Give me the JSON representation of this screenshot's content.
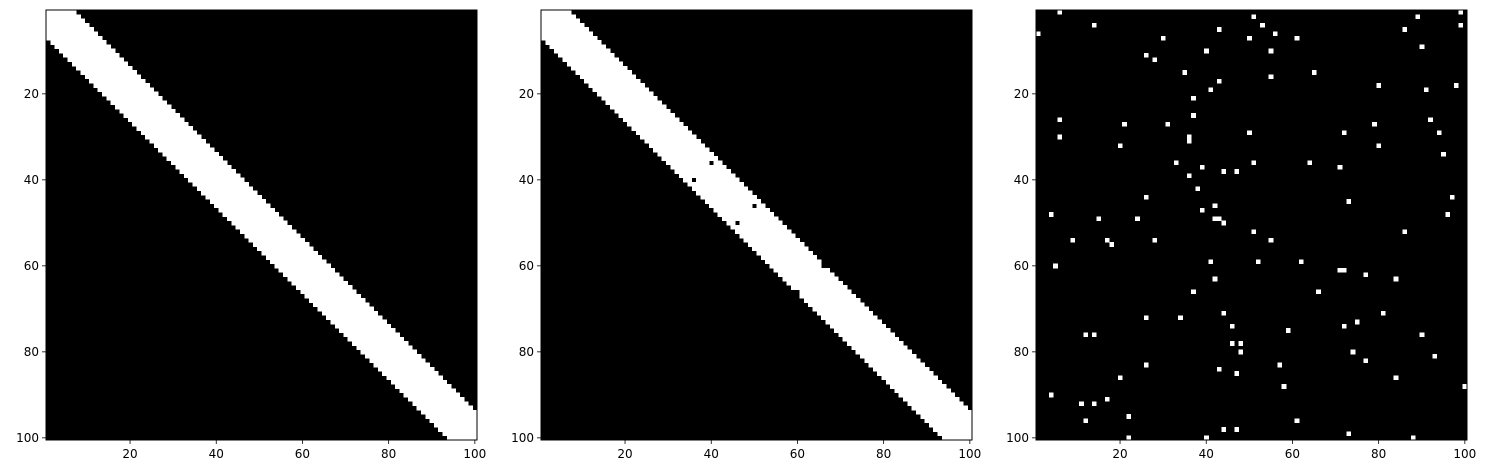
{
  "figure": {
    "background": "#ffffff"
  },
  "chart_data": [
    {
      "type": "heatmap",
      "title": "",
      "xlabel": "",
      "ylabel": "",
      "xlim": [
        1,
        100
      ],
      "ylim": [
        100,
        1
      ],
      "xticks": [
        20,
        40,
        60,
        80,
        100
      ],
      "yticks": [
        20,
        40,
        60,
        80,
        100
      ],
      "colormap": {
        "0": "#000000",
        "1": "#ffffff"
      },
      "band": {
        "lower_offset": -6,
        "upper_offset": 6,
        "value": 1
      },
      "extra_on": [],
      "extra_off": []
    },
    {
      "type": "heatmap",
      "title": "",
      "xlabel": "",
      "ylabel": "",
      "xlim": [
        1,
        100
      ],
      "ylim": [
        100,
        1
      ],
      "xticks": [
        20,
        40,
        60,
        80,
        100
      ],
      "yticks": [
        20,
        40,
        60,
        80,
        100
      ],
      "colormap": {
        "0": "#000000",
        "1": "#ffffff"
      },
      "band": {
        "lower_offset": -6,
        "upper_offset": 6,
        "value": 1
      },
      "extra_on": [],
      "extra_off": [
        [
          40,
          36
        ],
        [
          36,
          40
        ],
        [
          50,
          46
        ],
        [
          46,
          50
        ],
        [
          66,
          60
        ],
        [
          60,
          66
        ]
      ]
    },
    {
      "type": "heatmap",
      "title": "",
      "xlabel": "",
      "ylabel": "",
      "xlim": [
        1,
        100
      ],
      "ylim": [
        100,
        1
      ],
      "xticks": [
        20,
        40,
        60,
        80,
        100
      ],
      "yticks": [
        20,
        40,
        60,
        80,
        100
      ],
      "colormap": {
        "0": "#000000",
        "1": "#ffffff"
      },
      "band": null,
      "extra_on": [
        [
          1,
          6
        ],
        [
          6,
          1
        ],
        [
          6,
          26
        ],
        [
          6,
          30
        ],
        [
          4,
          90
        ],
        [
          9,
          54
        ],
        [
          11,
          92
        ],
        [
          14,
          76
        ],
        [
          14,
          92
        ],
        [
          17,
          54
        ],
        [
          18,
          55
        ],
        [
          20,
          86
        ],
        [
          24,
          49
        ],
        [
          26,
          72
        ],
        [
          28,
          12
        ],
        [
          28,
          54
        ],
        [
          31,
          27
        ],
        [
          33,
          36
        ],
        [
          37,
          66
        ],
        [
          38,
          42
        ],
        [
          40,
          10
        ],
        [
          43,
          5
        ],
        [
          43,
          84
        ],
        [
          44,
          38
        ],
        [
          47,
          98
        ],
        [
          47,
          38
        ],
        [
          50,
          29
        ],
        [
          50,
          7
        ],
        [
          55,
          54
        ],
        [
          55,
          10
        ],
        [
          56,
          6
        ],
        [
          59,
          75
        ],
        [
          62,
          59
        ],
        [
          64,
          36
        ],
        [
          65,
          15
        ],
        [
          66,
          66
        ],
        [
          71,
          61
        ],
        [
          71,
          37
        ],
        [
          72,
          29
        ],
        [
          72,
          74
        ],
        [
          72,
          61
        ],
        [
          73,
          45
        ],
        [
          73,
          99
        ],
        [
          74,
          80
        ],
        [
          75,
          73
        ],
        [
          79,
          27
        ],
        [
          80,
          18
        ],
        [
          81,
          71
        ],
        [
          84,
          63
        ],
        [
          86,
          52
        ],
        [
          88,
          100
        ],
        [
          90,
          9
        ],
        [
          90,
          76
        ],
        [
          92,
          26
        ],
        [
          93,
          81
        ],
        [
          94,
          29
        ],
        [
          95,
          34
        ],
        [
          96,
          48
        ],
        [
          97,
          44
        ],
        [
          98,
          18
        ],
        [
          99,
          1
        ],
        [
          100,
          88
        ],
        [
          46,
          74
        ],
        [
          46,
          78
        ],
        [
          47,
          85
        ],
        [
          53,
          4
        ],
        [
          52,
          59
        ],
        [
          44,
          71
        ],
        [
          44,
          98
        ],
        [
          44,
          50
        ],
        [
          42,
          49
        ],
        [
          42,
          46
        ],
        [
          43,
          49
        ],
        [
          36,
          31
        ],
        [
          36,
          30
        ],
        [
          37,
          21
        ],
        [
          26,
          44
        ],
        [
          21,
          27
        ],
        [
          39,
          37
        ],
        [
          51,
          52
        ],
        [
          51,
          36
        ],
        [
          51,
          2
        ],
        [
          48,
          78
        ],
        [
          48,
          80
        ],
        [
          22,
          95
        ],
        [
          57,
          83
        ],
        [
          26,
          83
        ],
        [
          26,
          11
        ],
        [
          55,
          16
        ],
        [
          43,
          17
        ],
        [
          30,
          7
        ],
        [
          77,
          82
        ],
        [
          77,
          62
        ],
        [
          80,
          32
        ],
        [
          20,
          32
        ],
        [
          12,
          96
        ],
        [
          12,
          76
        ],
        [
          17,
          91
        ],
        [
          22,
          100
        ],
        [
          37,
          25
        ],
        [
          40,
          100
        ],
        [
          41,
          59
        ],
        [
          39,
          47
        ],
        [
          4,
          48
        ],
        [
          5,
          60
        ],
        [
          61,
          7
        ],
        [
          61,
          96
        ],
        [
          99,
          4
        ],
        [
          89,
          2
        ],
        [
          91,
          19
        ],
        [
          84,
          86
        ],
        [
          86,
          5
        ],
        [
          36,
          39
        ],
        [
          41,
          19
        ],
        [
          42,
          63
        ],
        [
          14,
          4
        ],
        [
          15,
          49
        ],
        [
          58,
          88
        ],
        [
          34,
          72
        ],
        [
          35,
          15
        ]
      ],
      "extra_off": []
    }
  ]
}
